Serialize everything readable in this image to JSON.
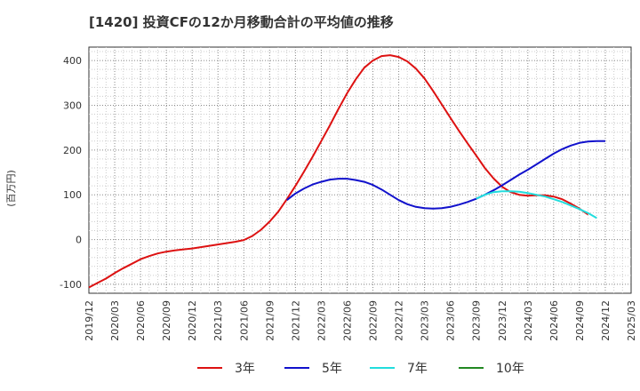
{
  "chart_data": {
    "type": "line",
    "title": "[1420]  投資CFの12か月移動合計の平均値の推移",
    "ylabel": "(百万円)",
    "xlabel": "",
    "ylim": [
      -120,
      430
    ],
    "yticks": [
      -100,
      0,
      100,
      200,
      300,
      400
    ],
    "grid": true,
    "legend_position": "bottom",
    "x_tick_labels": [
      "2019/12",
      "2020/03",
      "2020/06",
      "2020/09",
      "2020/12",
      "2021/03",
      "2021/06",
      "2021/09",
      "2021/12",
      "2022/03",
      "2022/06",
      "2022/09",
      "2022/12",
      "2023/03",
      "2023/06",
      "2023/09",
      "2023/12",
      "2024/03",
      "2024/06",
      "2024/09",
      "2024/12",
      "2025/03"
    ],
    "series": [
      {
        "name": "3年",
        "color": "#dd1111",
        "points": [
          [
            "2019/12",
            -107
          ],
          [
            "2020/01",
            -97
          ],
          [
            "2020/02",
            -87
          ],
          [
            "2020/03",
            -75
          ],
          [
            "2020/04",
            -64
          ],
          [
            "2020/05",
            -54
          ],
          [
            "2020/06",
            -44
          ],
          [
            "2020/07",
            -37
          ],
          [
            "2020/08",
            -31
          ],
          [
            "2020/09",
            -27
          ],
          [
            "2020/10",
            -24
          ],
          [
            "2020/11",
            -22
          ],
          [
            "2020/12",
            -20
          ],
          [
            "2021/01",
            -17
          ],
          [
            "2021/02",
            -14
          ],
          [
            "2021/03",
            -11
          ],
          [
            "2021/04",
            -8
          ],
          [
            "2021/05",
            -5
          ],
          [
            "2021/06",
            -1
          ],
          [
            "2021/07",
            8
          ],
          [
            "2021/08",
            22
          ],
          [
            "2021/09",
            40
          ],
          [
            "2021/10",
            62
          ],
          [
            "2021/11",
            90
          ],
          [
            "2021/12",
            120
          ],
          [
            "2022/01",
            152
          ],
          [
            "2022/02",
            185
          ],
          [
            "2022/03",
            220
          ],
          [
            "2022/04",
            255
          ],
          [
            "2022/05",
            292
          ],
          [
            "2022/06",
            327
          ],
          [
            "2022/07",
            358
          ],
          [
            "2022/08",
            384
          ],
          [
            "2022/09",
            400
          ],
          [
            "2022/10",
            410
          ],
          [
            "2022/11",
            412
          ],
          [
            "2022/12",
            408
          ],
          [
            "2023/01",
            398
          ],
          [
            "2023/02",
            382
          ],
          [
            "2023/03",
            360
          ],
          [
            "2023/04",
            332
          ],
          [
            "2023/05",
            302
          ],
          [
            "2023/06",
            272
          ],
          [
            "2023/07",
            243
          ],
          [
            "2023/08",
            215
          ],
          [
            "2023/09",
            188
          ],
          [
            "2023/10",
            160
          ],
          [
            "2023/11",
            137
          ],
          [
            "2023/12",
            118
          ],
          [
            "2024/01",
            106
          ],
          [
            "2024/02",
            100
          ],
          [
            "2024/03",
            98
          ],
          [
            "2024/04",
            99
          ],
          [
            "2024/05",
            99
          ],
          [
            "2024/06",
            96
          ],
          [
            "2024/07",
            90
          ],
          [
            "2024/08",
            80
          ],
          [
            "2024/09",
            69
          ],
          [
            "2024/10",
            56
          ]
        ]
      },
      {
        "name": "5年",
        "color": "#1111cc",
        "points": [
          [
            "2021/11",
            88
          ],
          [
            "2021/12",
            103
          ],
          [
            "2022/01",
            114
          ],
          [
            "2022/02",
            123
          ],
          [
            "2022/03",
            129
          ],
          [
            "2022/04",
            134
          ],
          [
            "2022/05",
            136
          ],
          [
            "2022/06",
            136
          ],
          [
            "2022/07",
            133
          ],
          [
            "2022/08",
            129
          ],
          [
            "2022/09",
            122
          ],
          [
            "2022/10",
            112
          ],
          [
            "2022/11",
            100
          ],
          [
            "2022/12",
            88
          ],
          [
            "2023/01",
            79
          ],
          [
            "2023/02",
            73
          ],
          [
            "2023/03",
            70
          ],
          [
            "2023/04",
            69
          ],
          [
            "2023/05",
            70
          ],
          [
            "2023/06",
            73
          ],
          [
            "2023/07",
            78
          ],
          [
            "2023/08",
            84
          ],
          [
            "2023/09",
            91
          ],
          [
            "2023/10",
            100
          ],
          [
            "2023/11",
            110
          ],
          [
            "2023/12",
            121
          ],
          [
            "2024/01",
            133
          ],
          [
            "2024/02",
            145
          ],
          [
            "2024/03",
            156
          ],
          [
            "2024/04",
            168
          ],
          [
            "2024/05",
            180
          ],
          [
            "2024/06",
            192
          ],
          [
            "2024/07",
            202
          ],
          [
            "2024/08",
            210
          ],
          [
            "2024/09",
            216
          ],
          [
            "2024/10",
            219
          ],
          [
            "2024/11",
            220
          ],
          [
            "2024/12",
            220
          ]
        ]
      },
      {
        "name": "7年",
        "color": "#22dddd",
        "points": [
          [
            "2023/09",
            91
          ],
          [
            "2023/10",
            100
          ],
          [
            "2023/11",
            106
          ],
          [
            "2023/12",
            108
          ],
          [
            "2024/01",
            108
          ],
          [
            "2024/02",
            107
          ],
          [
            "2024/03",
            104
          ],
          [
            "2024/04",
            100
          ],
          [
            "2024/05",
            96
          ],
          [
            "2024/06",
            90
          ],
          [
            "2024/07",
            84
          ],
          [
            "2024/08",
            76
          ],
          [
            "2024/09",
            68
          ],
          [
            "2024/10",
            59
          ],
          [
            "2024/11",
            48
          ]
        ]
      },
      {
        "name": "10年",
        "color": "#228822",
        "points": []
      }
    ]
  }
}
